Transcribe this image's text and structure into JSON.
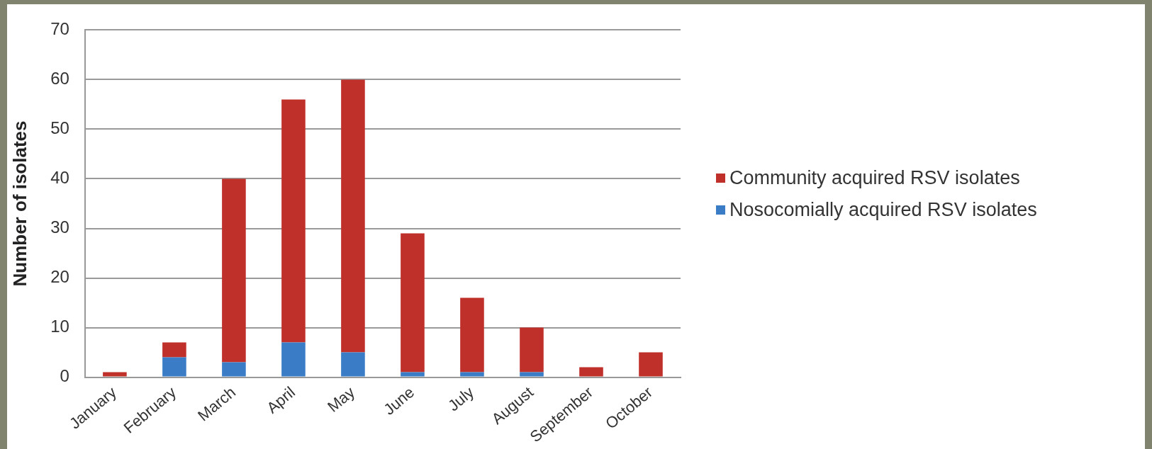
{
  "chart_data": {
    "type": "bar",
    "ylabel": "Number of isolates",
    "categories": [
      "January",
      "February",
      "March",
      "April",
      "May",
      "June",
      "July",
      "August",
      "September",
      "October"
    ],
    "stacked": true,
    "ylim": [
      0,
      70
    ],
    "yticks": [
      0,
      10,
      20,
      30,
      40,
      50,
      60,
      70
    ],
    "grid": "y",
    "legend": "right",
    "series": [
      {
        "name": "Nosocomially acquired RSV isolates",
        "color": "#3a7dc6",
        "values": [
          0,
          4,
          3,
          7,
          5,
          1,
          1,
          1,
          0,
          0
        ]
      },
      {
        "name": "Community acquired RSV isolates",
        "color": "#c0302b",
        "values": [
          1,
          3,
          37,
          49,
          55,
          28,
          15,
          9,
          2,
          5
        ]
      }
    ]
  }
}
